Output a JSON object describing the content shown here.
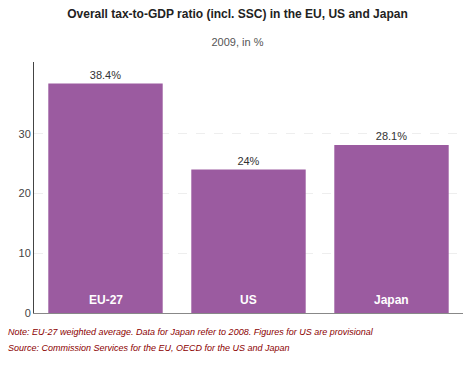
{
  "chart_data": {
    "type": "bar",
    "title": "Overall tax-to-GDP ratio (incl. SSC) in the EU, US and Japan",
    "subtitle": "2009, in %",
    "categories": [
      "EU-27",
      "US",
      "Japan"
    ],
    "values": [
      38.4,
      24.0,
      28.1
    ],
    "value_labels": [
      "38.4%",
      "24%",
      "28.1%"
    ],
    "data_labels": true,
    "color": "#9B5BA0",
    "ylim": [
      0,
      42
    ],
    "yticks": [
      0,
      10,
      20,
      30
    ],
    "grid": true,
    "tick_labels": "y",
    "annotations": [
      "Note: EU-27 weighted average. Data for Japan refer to 2008. Figures for US are provisional",
      "Source: Commission Services for the EU, OECD for the US and Japan"
    ]
  }
}
